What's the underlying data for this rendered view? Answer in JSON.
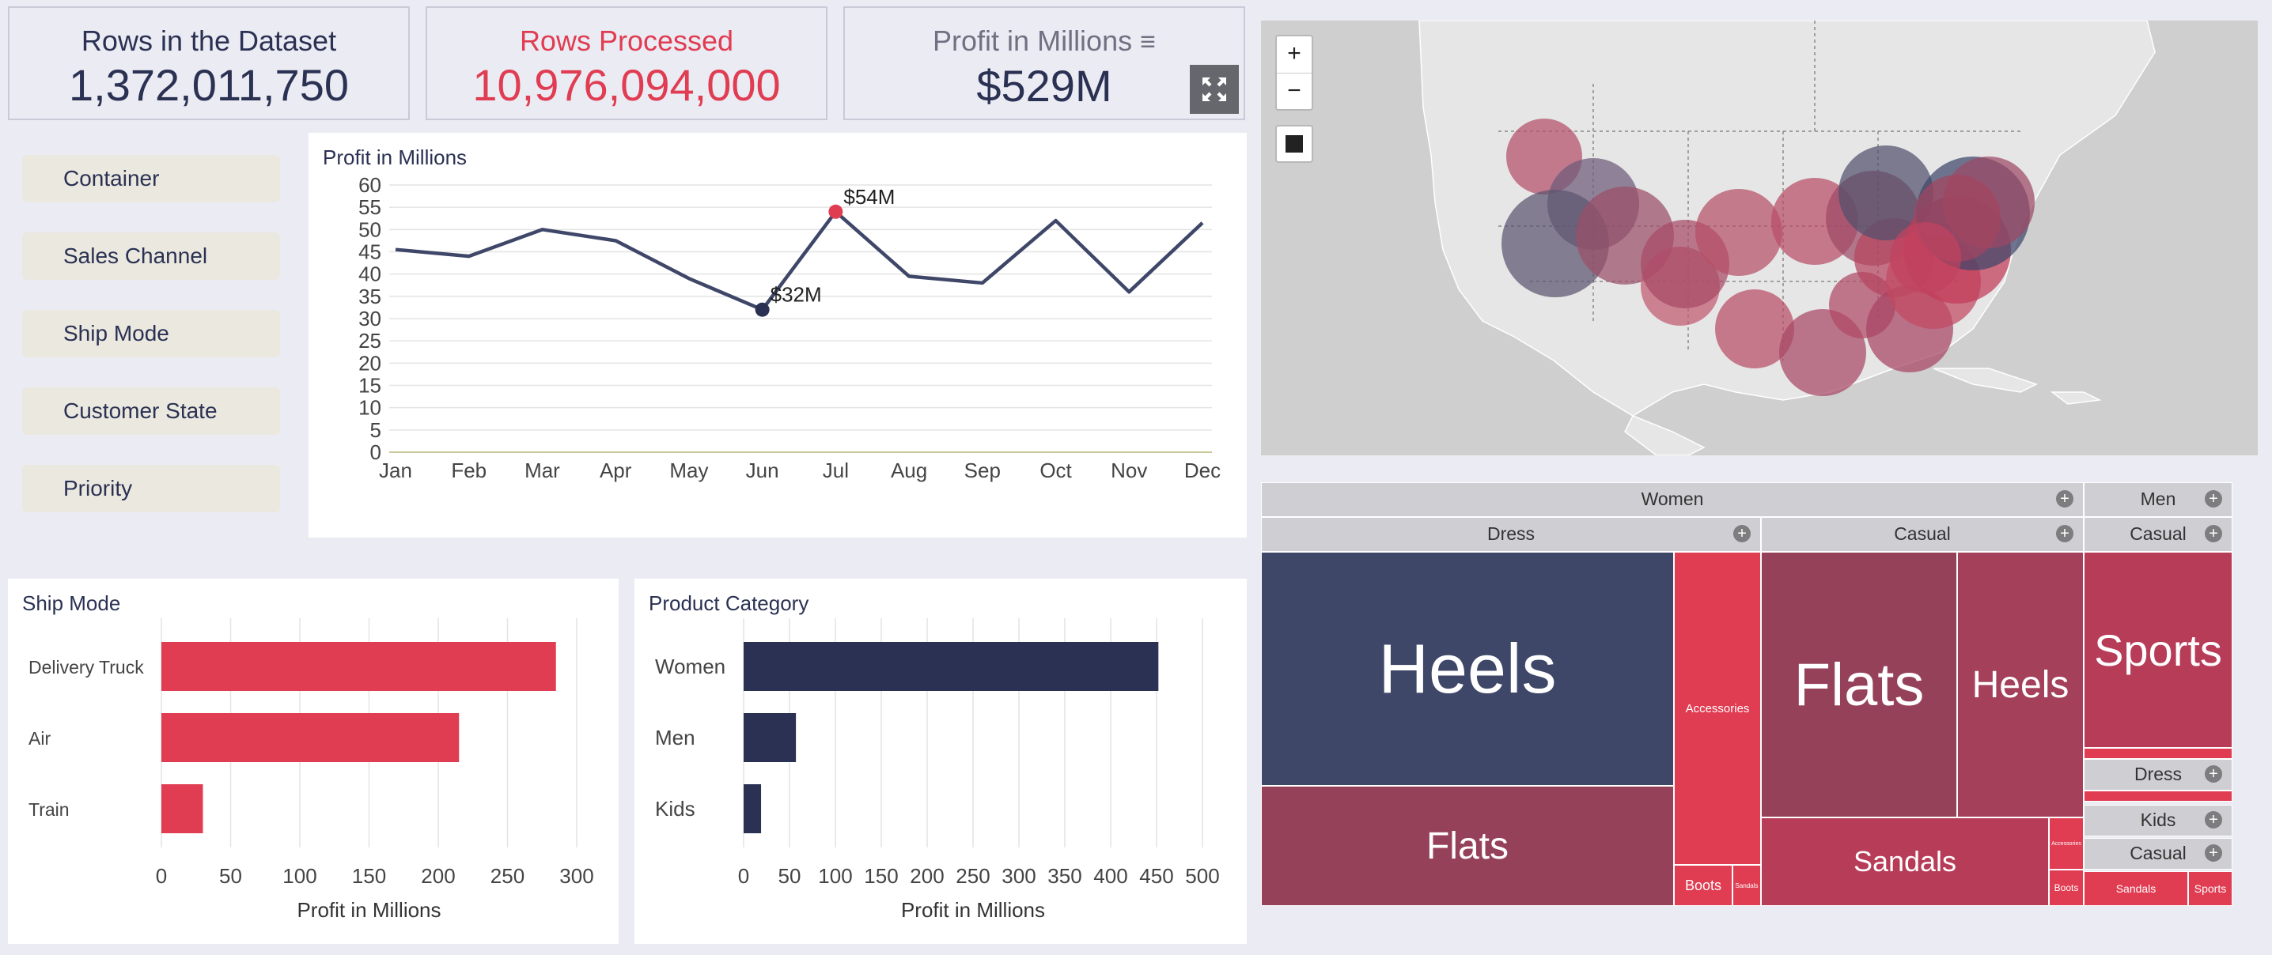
{
  "kpis": {
    "rows_dataset": {
      "label": "Rows in the Dataset",
      "value": "1,372,011,750"
    },
    "rows_processed": {
      "label": "Rows Processed",
      "value": "10,976,094,000"
    },
    "profit": {
      "label": "Profit in Millions",
      "menu_icon": "≡",
      "value": "$529M",
      "expand_icon": "expand-icon"
    }
  },
  "filters": [
    "Container",
    "Sales Channel",
    "Ship Mode",
    "Customer State",
    "Priority"
  ],
  "colors": {
    "navy": "#2a3152",
    "red": "#e03c52",
    "bg": "#ebebf3",
    "filter_bg": "#ebe8e0",
    "tm_navy": "#3f4769",
    "tm_wine": "#96415a",
    "tm_red": "#e03c52",
    "tm_rose": "#b73c58"
  },
  "line_chart": {
    "title": "Profit in Millions",
    "annotations": {
      "max": "$54M",
      "min": "$32M"
    }
  },
  "ship_chart": {
    "title": "Ship Mode",
    "xlabel": "Profit in Millions"
  },
  "product_chart": {
    "title": "Product Category",
    "xlabel": "Profit in Millions"
  },
  "map": {
    "zoom_in": "+",
    "zoom_out": "−"
  },
  "treemap": {
    "women": "Women",
    "men": "Men",
    "women_dress": "Dress",
    "women_casual": "Casual",
    "men_casual": "Casual",
    "men_dress": "Dress",
    "kids": "Kids",
    "kids_casual": "Casual",
    "cells": {
      "heels_dress": "Heels",
      "flats_dress": "Flats",
      "accessories": "Accessories",
      "boots": "Boots",
      "sandals_small": "Sandals",
      "flats_casual": "Flats",
      "heels_casual": "Heels",
      "sandals_casual": "Sandals",
      "accessories_small": "Accessories",
      "boots_small": "Boots",
      "men_sports": "Sports",
      "kids_sandals": "Sandals",
      "kids_sports": "Sports"
    }
  },
  "chart_data": [
    {
      "type": "line",
      "title": "Profit in Millions",
      "categories": [
        "Jan",
        "Feb",
        "Mar",
        "Apr",
        "May",
        "Jun",
        "Jul",
        "Aug",
        "Sep",
        "Oct",
        "Nov",
        "Dec"
      ],
      "values": [
        45.5,
        44,
        50,
        47.5,
        39,
        32,
        54,
        39.5,
        38,
        52,
        36,
        51.5
      ],
      "ylim": [
        0,
        60
      ],
      "yticks": [
        0,
        5,
        10,
        15,
        20,
        25,
        30,
        35,
        40,
        45,
        50,
        55,
        60
      ]
    },
    {
      "type": "bar",
      "title": "Ship Mode",
      "categories": [
        "Delivery Truck",
        "Air",
        "Train"
      ],
      "values": [
        285,
        215,
        30
      ],
      "xlabel": "Profit in Millions",
      "xlim": [
        0,
        300
      ],
      "xticks": [
        0,
        50,
        100,
        150,
        200,
        250,
        300
      ]
    },
    {
      "type": "bar",
      "title": "Product Category",
      "categories": [
        "Women",
        "Men",
        "Kids"
      ],
      "values": [
        452,
        57,
        19
      ],
      "xlabel": "Profit in Millions",
      "xlim": [
        0,
        500
      ],
      "xticks": [
        0,
        50,
        100,
        150,
        200,
        250,
        300,
        350,
        400,
        450,
        500
      ]
    }
  ]
}
